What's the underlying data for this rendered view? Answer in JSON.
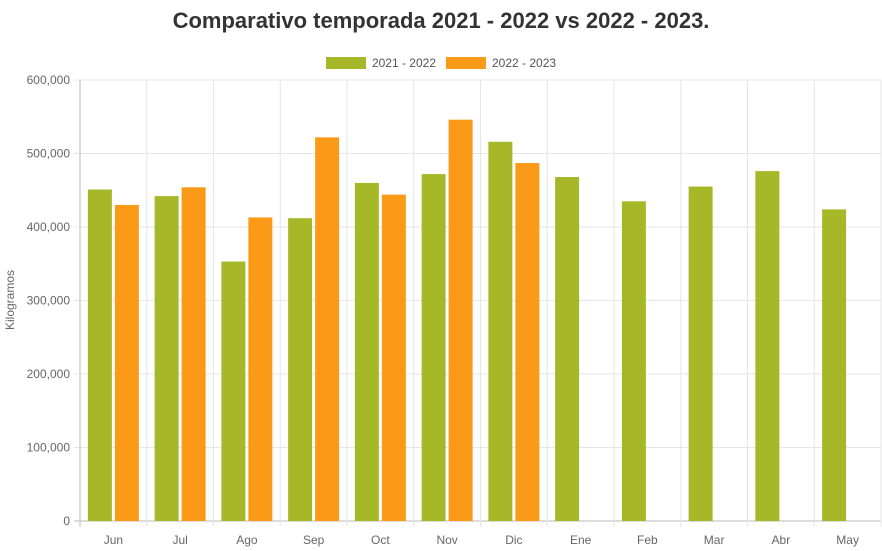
{
  "chart_data": {
    "type": "bar",
    "title": "Comparativo temporada 2021 - 2022 vs 2022 - 2023.",
    "ylabel": "Kilogramos",
    "xlabel": "",
    "ylim": [
      0,
      600000
    ],
    "yticks": [
      "0",
      "100,000",
      "200,000",
      "300,000",
      "400,000",
      "500,000",
      "600,000"
    ],
    "grid": true,
    "legend_position": "top-center",
    "categories": [
      "Jun",
      "Jul",
      "Ago",
      "Sep",
      "Oct",
      "Nov",
      "Dic",
      "Ene",
      "Feb",
      "Mar",
      "Abr",
      "May"
    ],
    "series": [
      {
        "name": "2021 - 2022",
        "color": "#a6b828",
        "values": [
          451000,
          442000,
          353000,
          412000,
          460000,
          472000,
          516000,
          468000,
          435000,
          455000,
          476000,
          424000
        ]
      },
      {
        "name": "2022 - 2023",
        "color": "#fb9a17",
        "values": [
          430000,
          454000,
          413000,
          522000,
          444000,
          546000,
          487000,
          null,
          null,
          null,
          null,
          null
        ]
      }
    ]
  }
}
